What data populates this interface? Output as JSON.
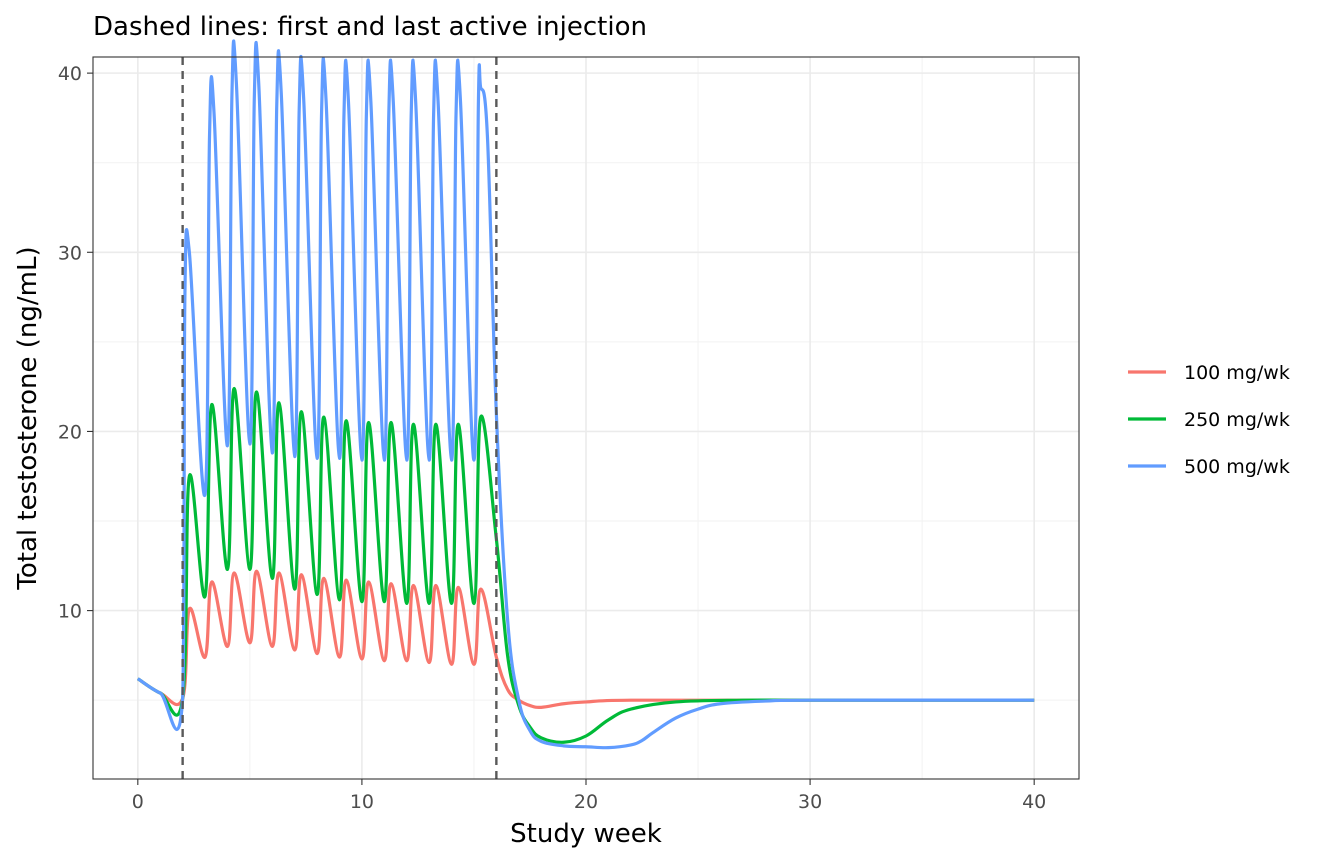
{
  "chart_data": {
    "type": "line",
    "title": "Dashed lines: first and last active injection",
    "xlabel": "Study week",
    "ylabel": "Total testosterone (ng/mL)",
    "xlim": [
      -2,
      42
    ],
    "ylim": [
      0.6,
      40.9
    ],
    "x_ticks": [
      0,
      10,
      20,
      30,
      40
    ],
    "y_ticks": [
      10,
      20,
      30,
      40
    ],
    "x_tick_labels": [
      "0",
      "10",
      "20",
      "30",
      "40"
    ],
    "y_tick_labels": [
      "10",
      "20",
      "30",
      "40"
    ],
    "grid": true,
    "legend_position": "right",
    "vlines": [
      {
        "x": 2,
        "style": "dashed",
        "color": "#595959"
      },
      {
        "x": 16,
        "style": "dashed",
        "color": "#595959"
      }
    ],
    "dosing": {
      "first_injection_week": 2,
      "last_injection_week": 16,
      "injection_interval_weeks": 1,
      "baseline": 6.2,
      "steady_state": 5.0
    },
    "series": [
      {
        "name": "100 mg/wk",
        "color": "#F8766D",
        "points": [
          [
            0,
            6.2
          ],
          [
            1,
            5.4
          ],
          [
            2,
            5.1
          ],
          [
            2.3,
            10.1
          ],
          [
            3,
            7.4
          ],
          [
            3.3,
            11.6
          ],
          [
            4,
            8.0
          ],
          [
            4.3,
            12.1
          ],
          [
            5,
            8.2
          ],
          [
            5.3,
            12.2
          ],
          [
            6,
            8.0
          ],
          [
            6.3,
            12.1
          ],
          [
            7,
            7.8
          ],
          [
            7.3,
            12.0
          ],
          [
            8,
            7.6
          ],
          [
            8.3,
            11.8
          ],
          [
            9,
            7.4
          ],
          [
            9.3,
            11.7
          ],
          [
            10,
            7.3
          ],
          [
            10.3,
            11.6
          ],
          [
            11,
            7.2
          ],
          [
            11.3,
            11.5
          ],
          [
            12,
            7.2
          ],
          [
            12.3,
            11.4
          ],
          [
            13,
            7.1
          ],
          [
            13.3,
            11.4
          ],
          [
            14,
            7.0
          ],
          [
            14.3,
            11.3
          ],
          [
            15,
            7.0
          ],
          [
            15.3,
            11.2
          ],
          [
            16,
            7.4
          ],
          [
            16.5,
            5.6
          ],
          [
            17,
            5.0
          ],
          [
            17.5,
            4.7
          ],
          [
            18,
            4.6
          ],
          [
            19,
            4.8
          ],
          [
            20,
            4.9
          ],
          [
            22,
            5.0
          ],
          [
            30,
            5.0
          ],
          [
            40,
            5.0
          ]
        ]
      },
      {
        "name": "250 mg/wk",
        "color": "#00BA38",
        "points": [
          [
            0,
            6.2
          ],
          [
            1,
            5.4
          ],
          [
            2,
            5.1
          ],
          [
            2.3,
            17.5
          ],
          [
            3,
            10.8
          ],
          [
            3.3,
            21.5
          ],
          [
            4,
            12.3
          ],
          [
            4.3,
            22.4
          ],
          [
            5,
            12.3
          ],
          [
            5.3,
            22.2
          ],
          [
            6,
            11.8
          ],
          [
            6.3,
            21.6
          ],
          [
            7,
            11.2
          ],
          [
            7.3,
            21.1
          ],
          [
            8,
            10.9
          ],
          [
            8.3,
            20.8
          ],
          [
            9,
            10.6
          ],
          [
            9.3,
            20.6
          ],
          [
            10,
            10.5
          ],
          [
            10.3,
            20.5
          ],
          [
            11,
            10.5
          ],
          [
            11.3,
            20.5
          ],
          [
            12,
            10.4
          ],
          [
            12.3,
            20.4
          ],
          [
            13,
            10.4
          ],
          [
            13.3,
            20.4
          ],
          [
            14,
            10.4
          ],
          [
            14.3,
            20.4
          ],
          [
            15,
            10.4
          ],
          [
            15.3,
            20.8
          ],
          [
            16,
            14.0
          ],
          [
            16.5,
            7.5
          ],
          [
            17,
            4.7
          ],
          [
            17.5,
            3.5
          ],
          [
            18,
            2.9
          ],
          [
            19,
            2.65
          ],
          [
            20,
            3.0
          ],
          [
            21,
            3.9
          ],
          [
            22,
            4.5
          ],
          [
            24,
            4.9
          ],
          [
            27,
            5.0
          ],
          [
            30,
            5.0
          ],
          [
            40,
            5.0
          ]
        ]
      },
      {
        "name": "500 mg/wk",
        "color": "#619CFF",
        "points": [
          [
            0,
            6.2
          ],
          [
            1,
            5.4
          ],
          [
            2,
            5.1
          ],
          [
            2.1,
            27.5
          ],
          [
            2.3,
            30.0
          ],
          [
            3,
            16.5
          ],
          [
            3.2,
            36.5
          ],
          [
            3.4,
            37.8
          ],
          [
            4,
            19.2
          ],
          [
            4.2,
            38.8
          ],
          [
            4.4,
            39.4
          ],
          [
            5,
            19.3
          ],
          [
            5.2,
            38.7
          ],
          [
            5.4,
            39.3
          ],
          [
            6,
            18.8
          ],
          [
            6.2,
            38.2
          ],
          [
            6.4,
            38.9
          ],
          [
            7,
            18.6
          ],
          [
            7.2,
            37.9
          ],
          [
            7.4,
            38.6
          ],
          [
            8,
            18.5
          ],
          [
            8.2,
            37.8
          ],
          [
            8.4,
            38.5
          ],
          [
            9,
            18.5
          ],
          [
            9.2,
            37.7
          ],
          [
            9.4,
            38.4
          ],
          [
            10,
            18.4
          ],
          [
            10.2,
            37.7
          ],
          [
            10.4,
            38.4
          ],
          [
            11,
            18.4
          ],
          [
            11.2,
            37.7
          ],
          [
            11.4,
            38.4
          ],
          [
            12,
            18.4
          ],
          [
            12.2,
            37.7
          ],
          [
            12.4,
            38.4
          ],
          [
            13,
            18.4
          ],
          [
            13.2,
            37.7
          ],
          [
            13.4,
            38.4
          ],
          [
            14,
            18.4
          ],
          [
            14.2,
            37.7
          ],
          [
            14.4,
            38.4
          ],
          [
            15,
            18.4
          ],
          [
            15.2,
            38.5
          ],
          [
            15.3,
            39.2
          ],
          [
            15.6,
            36.5
          ],
          [
            16,
            21.0
          ],
          [
            16.5,
            9.5
          ],
          [
            17,
            5.0
          ],
          [
            17.5,
            3.3
          ],
          [
            18,
            2.7
          ],
          [
            19,
            2.45
          ],
          [
            20,
            2.4
          ],
          [
            21,
            2.35
          ],
          [
            22,
            2.5
          ],
          [
            22.5,
            2.75
          ],
          [
            23,
            3.2
          ],
          [
            24,
            4.0
          ],
          [
            25,
            4.5
          ],
          [
            26,
            4.8
          ],
          [
            28,
            4.95
          ],
          [
            30,
            5.0
          ],
          [
            40,
            5.0
          ]
        ]
      }
    ]
  }
}
